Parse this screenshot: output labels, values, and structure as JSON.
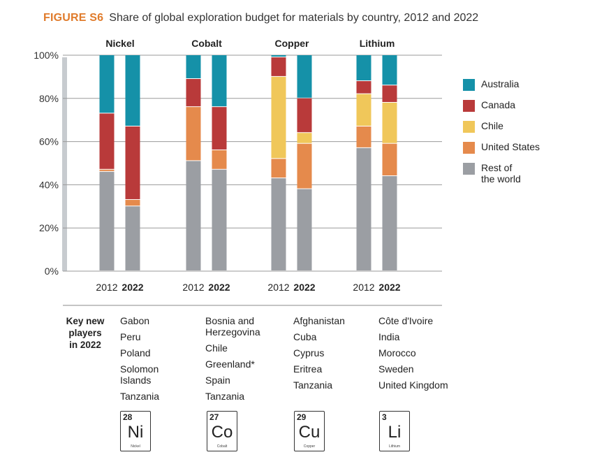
{
  "header": {
    "figure_label": "FIGURE S6",
    "title": "Share of global exploration budget for materials by country, 2012 and 2022"
  },
  "colors": {
    "Australia": "#1591a8",
    "Canada": "#b93a3a",
    "Chile": "#f0c75a",
    "United States": "#e58a4c",
    "Rest of the world": "#9b9ea3",
    "grid": "#9a9a9a",
    "axis_band": "#c7cbcf"
  },
  "legend": {
    "items": [
      {
        "label": "Australia",
        "key": "Australia"
      },
      {
        "label": "Canada",
        "key": "Canada"
      },
      {
        "label": "Chile",
        "key": "Chile"
      },
      {
        "label": "United States",
        "key": "United States"
      },
      {
        "label": "Rest of\nthe world",
        "key": "Rest of the world"
      }
    ]
  },
  "chart_data": {
    "type": "bar",
    "stacked": true,
    "title": "Share of global exploration budget for materials by country, 2012 and 2022",
    "ylabel": "",
    "ylim": [
      0,
      100
    ],
    "yticks": [
      "0%",
      "20%",
      "40%",
      "60%",
      "80%",
      "100%"
    ],
    "groups": [
      "Nickel",
      "Cobalt",
      "Copper",
      "Lithium"
    ],
    "years": [
      "2012",
      "2022"
    ],
    "stack_order": [
      "Rest of the world",
      "United States",
      "Chile",
      "Canada",
      "Australia"
    ],
    "series": [
      {
        "name": "Rest of the world",
        "values": [
          46,
          30,
          51,
          47,
          43,
          38,
          57,
          44
        ]
      },
      {
        "name": "United States",
        "values": [
          1,
          3,
          25,
          9,
          9,
          21,
          10,
          15
        ]
      },
      {
        "name": "Chile",
        "values": [
          0,
          0,
          0,
          0,
          38,
          5,
          15,
          19
        ]
      },
      {
        "name": "Canada",
        "values": [
          26,
          34,
          13,
          20,
          9,
          16,
          6,
          8
        ]
      },
      {
        "name": "Australia",
        "values": [
          27,
          33,
          11,
          24,
          1,
          20,
          12,
          14
        ]
      }
    ]
  },
  "key_players": {
    "heading": "Key new\nplayers\nin 2022",
    "columns": [
      {
        "items": [
          "Gabon",
          "Peru",
          "Poland",
          "Solomon\nIslands",
          "Tanzania"
        ]
      },
      {
        "items": [
          "Bosnia and\nHerzegovina",
          "Chile",
          "Greenland*",
          "Spain",
          "Tanzania"
        ]
      },
      {
        "items": [
          "Afghanistan",
          "Cuba",
          "Cyprus",
          "Eritrea",
          "Tanzania"
        ]
      },
      {
        "items": [
          "Côte d'Ivoire",
          "India",
          "Morocco",
          "Sweden",
          "United Kingdom"
        ]
      }
    ]
  },
  "elements": [
    {
      "number": "28",
      "symbol": "Ni",
      "name": "Nickel"
    },
    {
      "number": "27",
      "symbol": "Co",
      "name": "Cobalt"
    },
    {
      "number": "29",
      "symbol": "Cu",
      "name": "Copper"
    },
    {
      "number": "3",
      "symbol": "Li",
      "name": "Lithium"
    }
  ]
}
